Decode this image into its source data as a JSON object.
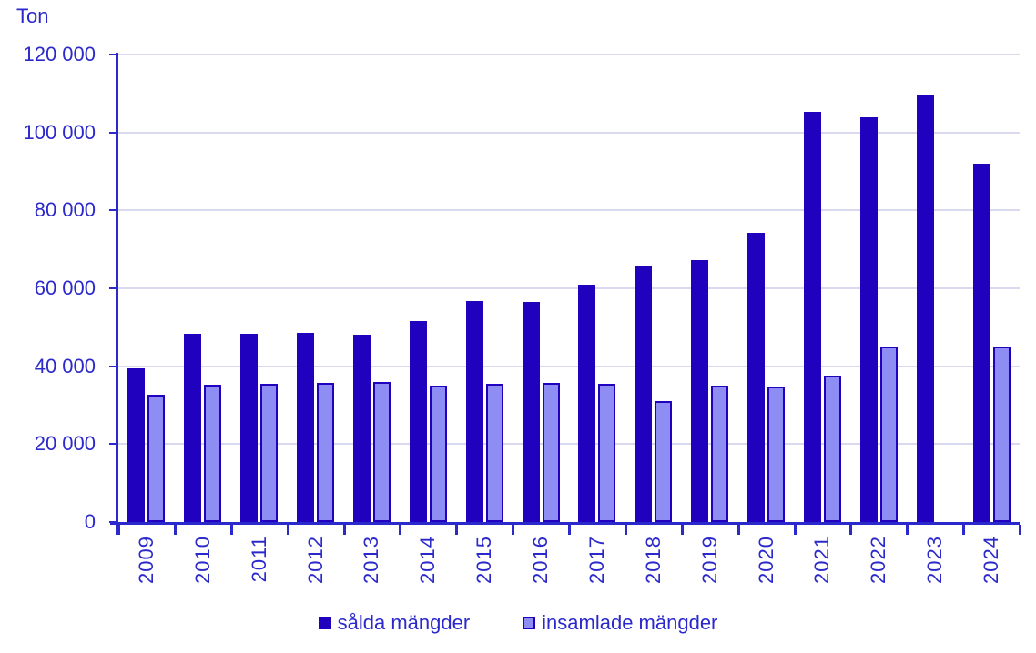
{
  "chart_data": {
    "type": "bar",
    "title": "",
    "unit_label": "Ton",
    "xlabel": "",
    "ylabel": "Ton",
    "categories": [
      "2009",
      "2010",
      "2011",
      "2012",
      "2013",
      "2014",
      "2015",
      "2016",
      "2017",
      "2018",
      "2019",
      "2020",
      "2021",
      "2022",
      "2023",
      "2024"
    ],
    "series": [
      {
        "name": "sålda mängder",
        "values": [
          39500,
          48300,
          48300,
          48500,
          48000,
          51500,
          56800,
          56500,
          61000,
          65700,
          67200,
          74300,
          105400,
          103800,
          109400,
          92000
        ]
      },
      {
        "name": "insamlade mängder",
        "values": [
          32700,
          35300,
          35400,
          35700,
          35900,
          35100,
          35400,
          35700,
          35400,
          31100,
          35100,
          34900,
          37500,
          45000,
          0,
          45000
        ]
      }
    ],
    "ylim": [
      0,
      120000
    ],
    "ytick_step": 20000,
    "ytick_labels": [
      "0",
      "20 000",
      "40 000",
      "60 000",
      "80 000",
      "100 000",
      "120 000"
    ],
    "grid": "horizontal",
    "legend_position": "bottom"
  },
  "colors": {
    "background": "#ffffff",
    "axis_and_text": "#2b29cb",
    "bar_dark": "#2002be",
    "bar_light": "#8d8df3",
    "bar_border": "#2002be",
    "gridline": "#d9d9ef"
  }
}
